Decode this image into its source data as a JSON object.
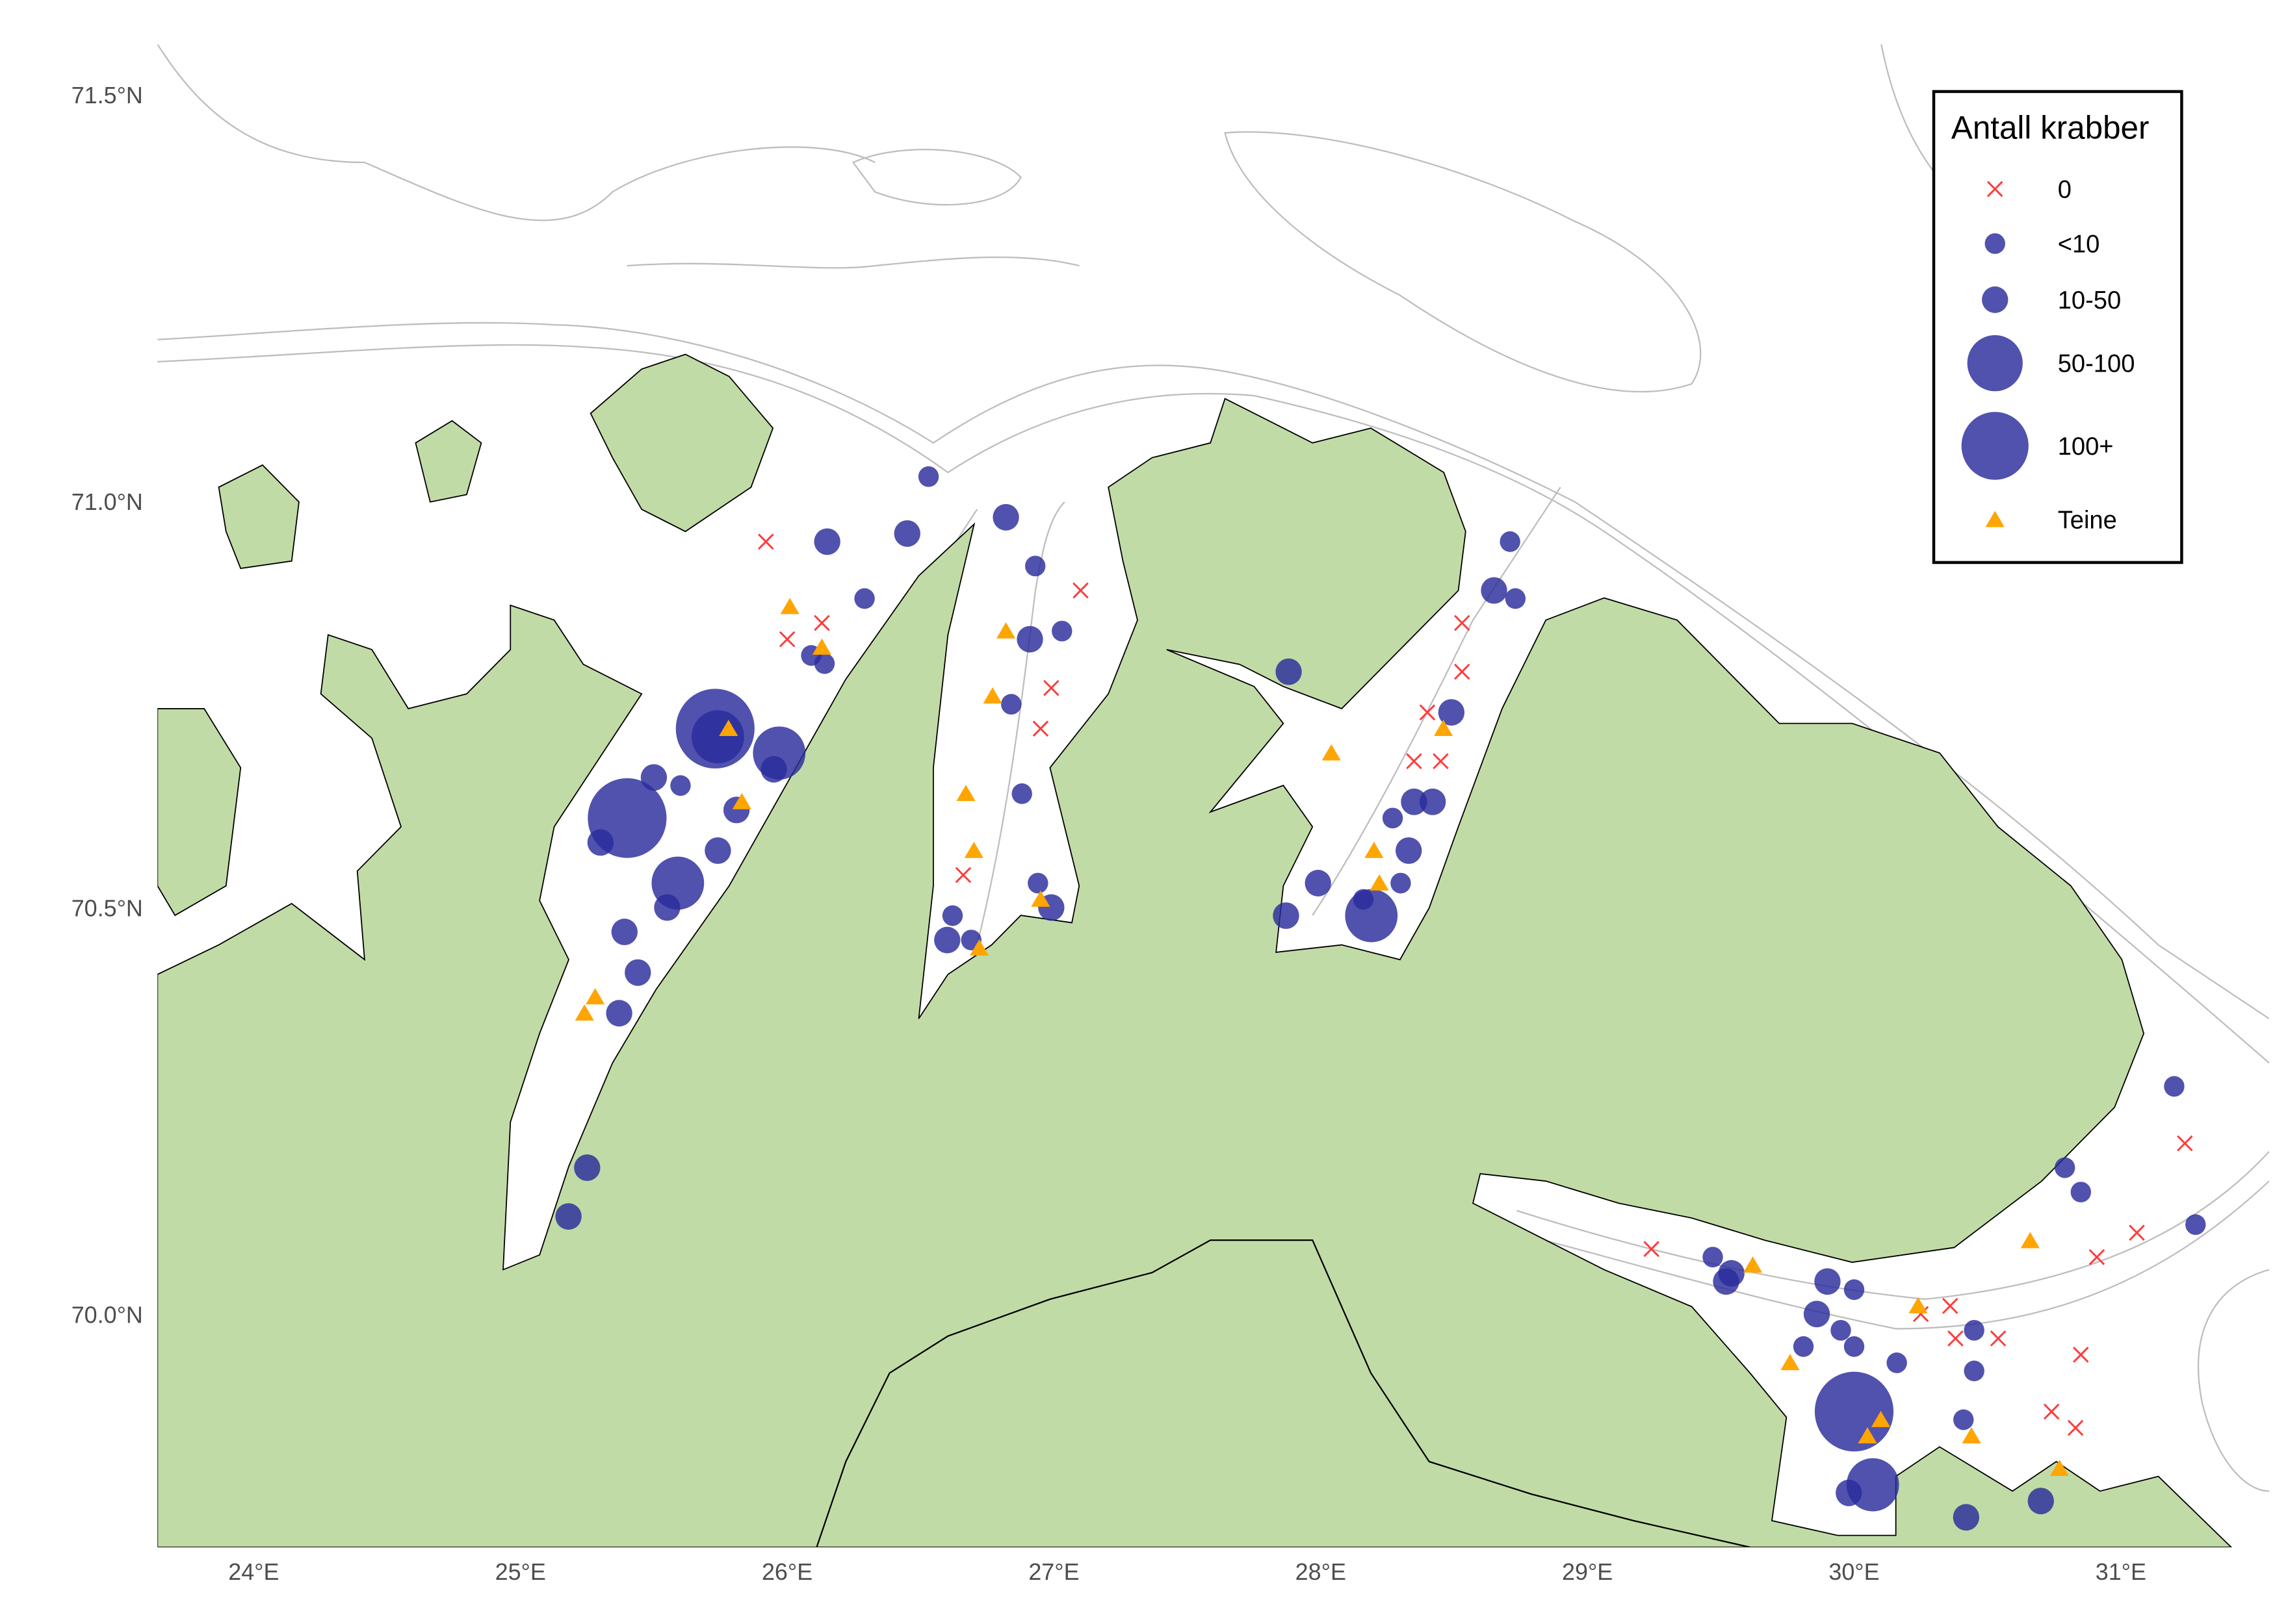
{
  "map": {
    "axes": {
      "x_ticks": [
        {
          "value": 24,
          "label": "24°E"
        },
        {
          "value": 25,
          "label": "25°E"
        },
        {
          "value": 26,
          "label": "26°E"
        },
        {
          "value": 27,
          "label": "27°E"
        },
        {
          "value": 28,
          "label": "28°E"
        },
        {
          "value": 29,
          "label": "29°E"
        },
        {
          "value": 30,
          "label": "30°E"
        },
        {
          "value": 31,
          "label": "31°E"
        }
      ],
      "y_ticks": [
        {
          "value": 71.5,
          "label": "71.5°N"
        },
        {
          "value": 71.0,
          "label": "71.0°N"
        },
        {
          "value": 70.5,
          "label": "70.5°N"
        },
        {
          "value": 70.0,
          "label": "70.0°N"
        }
      ],
      "lon_range": [
        23.64,
        31.56
      ],
      "lat_range": [
        69.71,
        71.56
      ]
    },
    "colors": {
      "land": "#c1dba6",
      "circle": "#2a2c9c",
      "zero": "#ff3b3b",
      "trap": "#ffa500",
      "contour": "#bdbdbd"
    },
    "legend": {
      "title": "Antall krabber",
      "items": [
        {
          "key": "zero",
          "label": "0",
          "icon": "cross-icon"
        },
        {
          "key": "s",
          "label": "<10",
          "icon": "circle-icon"
        },
        {
          "key": "m",
          "label": "10-50",
          "icon": "circle-icon"
        },
        {
          "key": "l",
          "label": "50-100",
          "icon": "circle-icon"
        },
        {
          "key": "xl",
          "label": "100+",
          "icon": "circle-icon"
        },
        {
          "key": "trap",
          "label": "Teine",
          "icon": "triangle-icon"
        }
      ]
    },
    "zero_catch": [
      [
        25.92,
        70.95
      ],
      [
        26.0,
        70.83
      ],
      [
        26.13,
        70.85
      ],
      [
        26.66,
        70.54
      ],
      [
        26.99,
        70.77
      ],
      [
        26.95,
        70.72
      ],
      [
        27.1,
        70.89
      ],
      [
        28.53,
        70.85
      ],
      [
        28.53,
        70.79
      ],
      [
        28.4,
        70.74
      ],
      [
        28.45,
        70.68
      ],
      [
        28.35,
        70.68
      ],
      [
        29.24,
        70.08
      ],
      [
        30.25,
        70.0
      ],
      [
        30.36,
        70.01
      ],
      [
        30.38,
        69.97
      ],
      [
        30.54,
        69.97
      ],
      [
        30.85,
        69.95
      ],
      [
        30.74,
        69.88
      ],
      [
        30.83,
        69.86
      ],
      [
        30.91,
        70.07
      ],
      [
        31.06,
        70.1
      ],
      [
        31.24,
        70.21
      ]
    ],
    "traps": [
      [
        26.01,
        70.87
      ],
      [
        26.13,
        70.82
      ],
      [
        25.78,
        70.72
      ],
      [
        25.83,
        70.63
      ],
      [
        25.28,
        70.39
      ],
      [
        25.24,
        70.37
      ],
      [
        26.82,
        70.84
      ],
      [
        26.77,
        70.76
      ],
      [
        26.67,
        70.64
      ],
      [
        26.7,
        70.57
      ],
      [
        26.72,
        70.45
      ],
      [
        26.95,
        70.51
      ],
      [
        28.04,
        70.69
      ],
      [
        28.46,
        70.72
      ],
      [
        28.2,
        70.57
      ],
      [
        28.22,
        70.53
      ],
      [
        29.62,
        70.06
      ],
      [
        30.24,
        70.01
      ],
      [
        29.76,
        69.94
      ],
      [
        30.1,
        69.87
      ],
      [
        30.05,
        69.85
      ],
      [
        30.44,
        69.85
      ],
      [
        30.77,
        69.81
      ],
      [
        30.66,
        70.09
      ]
    ],
    "catches": [
      [
        26.53,
        71.03,
        "s"
      ],
      [
        26.15,
        70.95,
        "m"
      ],
      [
        26.45,
        70.96,
        "m"
      ],
      [
        26.29,
        70.88,
        "s"
      ],
      [
        26.09,
        70.81,
        "s"
      ],
      [
        26.14,
        70.8,
        "s"
      ],
      [
        26.82,
        70.98,
        "m"
      ],
      [
        26.93,
        70.92,
        "s"
      ],
      [
        26.91,
        70.83,
        "m"
      ],
      [
        27.03,
        70.84,
        "s"
      ],
      [
        26.84,
        70.75,
        "s"
      ],
      [
        26.88,
        70.64,
        "s"
      ],
      [
        26.94,
        70.53,
        "s"
      ],
      [
        26.99,
        70.5,
        "m"
      ],
      [
        26.62,
        70.49,
        "s"
      ],
      [
        26.6,
        70.46,
        "m"
      ],
      [
        26.69,
        70.46,
        "s"
      ],
      [
        25.73,
        70.72,
        "xl"
      ],
      [
        25.74,
        70.71,
        "l"
      ],
      [
        25.97,
        70.69,
        "l"
      ],
      [
        25.95,
        70.67,
        "m"
      ],
      [
        25.5,
        70.66,
        "m"
      ],
      [
        25.6,
        70.65,
        "s"
      ],
      [
        25.4,
        70.61,
        "xl"
      ],
      [
        25.3,
        70.58,
        "m"
      ],
      [
        25.81,
        70.62,
        "m"
      ],
      [
        25.74,
        70.57,
        "m"
      ],
      [
        25.59,
        70.53,
        "l"
      ],
      [
        25.55,
        70.5,
        "m"
      ],
      [
        25.39,
        70.47,
        "m"
      ],
      [
        25.44,
        70.42,
        "m"
      ],
      [
        25.37,
        70.37,
        "m"
      ],
      [
        25.25,
        70.18,
        "m"
      ],
      [
        25.18,
        70.12,
        "m"
      ],
      [
        27.88,
        70.79,
        "m"
      ],
      [
        28.71,
        70.95,
        "s"
      ],
      [
        28.65,
        70.89,
        "m"
      ],
      [
        28.73,
        70.88,
        "s"
      ],
      [
        28.49,
        70.74,
        "m"
      ],
      [
        28.35,
        70.63,
        "m"
      ],
      [
        28.42,
        70.63,
        "m"
      ],
      [
        28.27,
        70.61,
        "s"
      ],
      [
        28.33,
        70.57,
        "m"
      ],
      [
        27.99,
        70.53,
        "m"
      ],
      [
        27.87,
        70.49,
        "m"
      ],
      [
        28.16,
        70.51,
        "s"
      ],
      [
        28.19,
        70.49,
        "l"
      ],
      [
        28.3,
        70.53,
        "s"
      ],
      [
        31.2,
        70.28,
        "s"
      ],
      [
        30.79,
        70.18,
        "s"
      ],
      [
        30.85,
        70.15,
        "s"
      ],
      [
        31.28,
        70.11,
        "s"
      ],
      [
        29.47,
        70.07,
        "s"
      ],
      [
        29.54,
        70.05,
        "m"
      ],
      [
        29.52,
        70.04,
        "m"
      ],
      [
        29.9,
        70.04,
        "m"
      ],
      [
        30.0,
        70.03,
        "s"
      ],
      [
        29.86,
        70.0,
        "m"
      ],
      [
        29.95,
        69.98,
        "s"
      ],
      [
        29.81,
        69.96,
        "s"
      ],
      [
        30.0,
        69.96,
        "s"
      ],
      [
        30.16,
        69.94,
        "s"
      ],
      [
        30.45,
        69.98,
        "s"
      ],
      [
        30.45,
        69.93,
        "s"
      ],
      [
        30.0,
        69.88,
        "xl"
      ],
      [
        30.07,
        69.79,
        "l"
      ],
      [
        29.98,
        69.78,
        "m"
      ],
      [
        30.41,
        69.87,
        "s"
      ],
      [
        30.7,
        69.77,
        "m"
      ],
      [
        30.42,
        69.75,
        "m"
      ]
    ]
  }
}
